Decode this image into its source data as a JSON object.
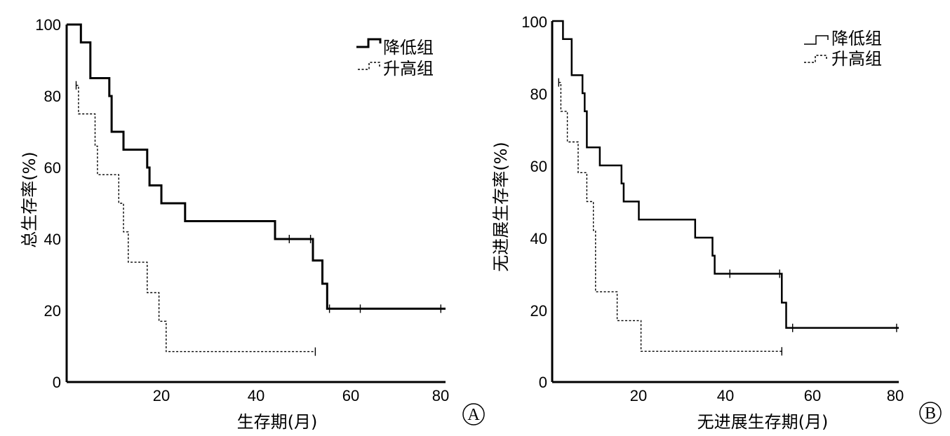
{
  "chart_data": [
    {
      "type": "line",
      "panel_label": "A",
      "xlabel": "生存期(月)",
      "ylabel": "总生存率(%)",
      "xlim": [
        0,
        80
      ],
      "ylim": [
        0,
        100
      ],
      "xticks": [
        "20",
        "40",
        "60",
        "80"
      ],
      "yticks": [
        "0",
        "20",
        "40",
        "60",
        "80",
        "100"
      ],
      "grid": false,
      "legend_position": "top-right",
      "series": [
        {
          "name": "降低组",
          "style": "solid",
          "x": [
            0,
            3,
            5,
            9,
            9.5,
            12,
            17,
            17.5,
            20,
            25,
            44,
            52,
            53,
            54,
            55,
            80
          ],
          "y": [
            100,
            95,
            85,
            80,
            70,
            65,
            60,
            55,
            50,
            45,
            40,
            34,
            34,
            27.5,
            20.5,
            20.5
          ],
          "censored_x": [
            47,
            51.5,
            55.5,
            62,
            79
          ]
        },
        {
          "name": "升高组",
          "style": "dashed",
          "x": [
            2,
            2.5,
            6,
            6.5,
            11,
            12,
            13,
            17,
            19.5,
            21,
            52.5
          ],
          "y": [
            83,
            75,
            66,
            58,
            50,
            42,
            33.5,
            25,
            17,
            8.5,
            8.5
          ],
          "censored_x": [
            2,
            52.5
          ]
        }
      ]
    },
    {
      "type": "line",
      "panel_label": "B",
      "xlabel": "无进展生存期(月)",
      "ylabel": "无进展生存率(%)",
      "xlim": [
        0,
        80
      ],
      "ylim": [
        0,
        100
      ],
      "xticks": [
        "20",
        "40",
        "60",
        "80"
      ],
      "yticks": [
        "0",
        "20",
        "40",
        "60",
        "80",
        "100"
      ],
      "grid": false,
      "legend_position": "top-right",
      "series": [
        {
          "name": "降低组",
          "style": "solid",
          "x": [
            0,
            2.5,
            4.5,
            7,
            7.5,
            8,
            11,
            16,
            16.5,
            20,
            33,
            37,
            37.5,
            53,
            54,
            80
          ],
          "y": [
            100,
            95,
            85,
            80,
            75,
            65,
            60,
            55,
            50,
            45,
            40,
            35,
            30,
            22,
            15,
            15
          ],
          "censored_x": [
            41,
            52.5,
            55.5,
            79.5
          ]
        },
        {
          "name": "升高组",
          "style": "dashed",
          "x": [
            1.5,
            2,
            3.5,
            6,
            8,
            9.5,
            10,
            15,
            20.5,
            53
          ],
          "y": [
            83,
            75,
            66.5,
            58,
            50,
            42,
            25,
            17,
            8.5,
            8.5
          ],
          "censored_x": [
            1.5,
            53
          ]
        }
      ]
    }
  ]
}
